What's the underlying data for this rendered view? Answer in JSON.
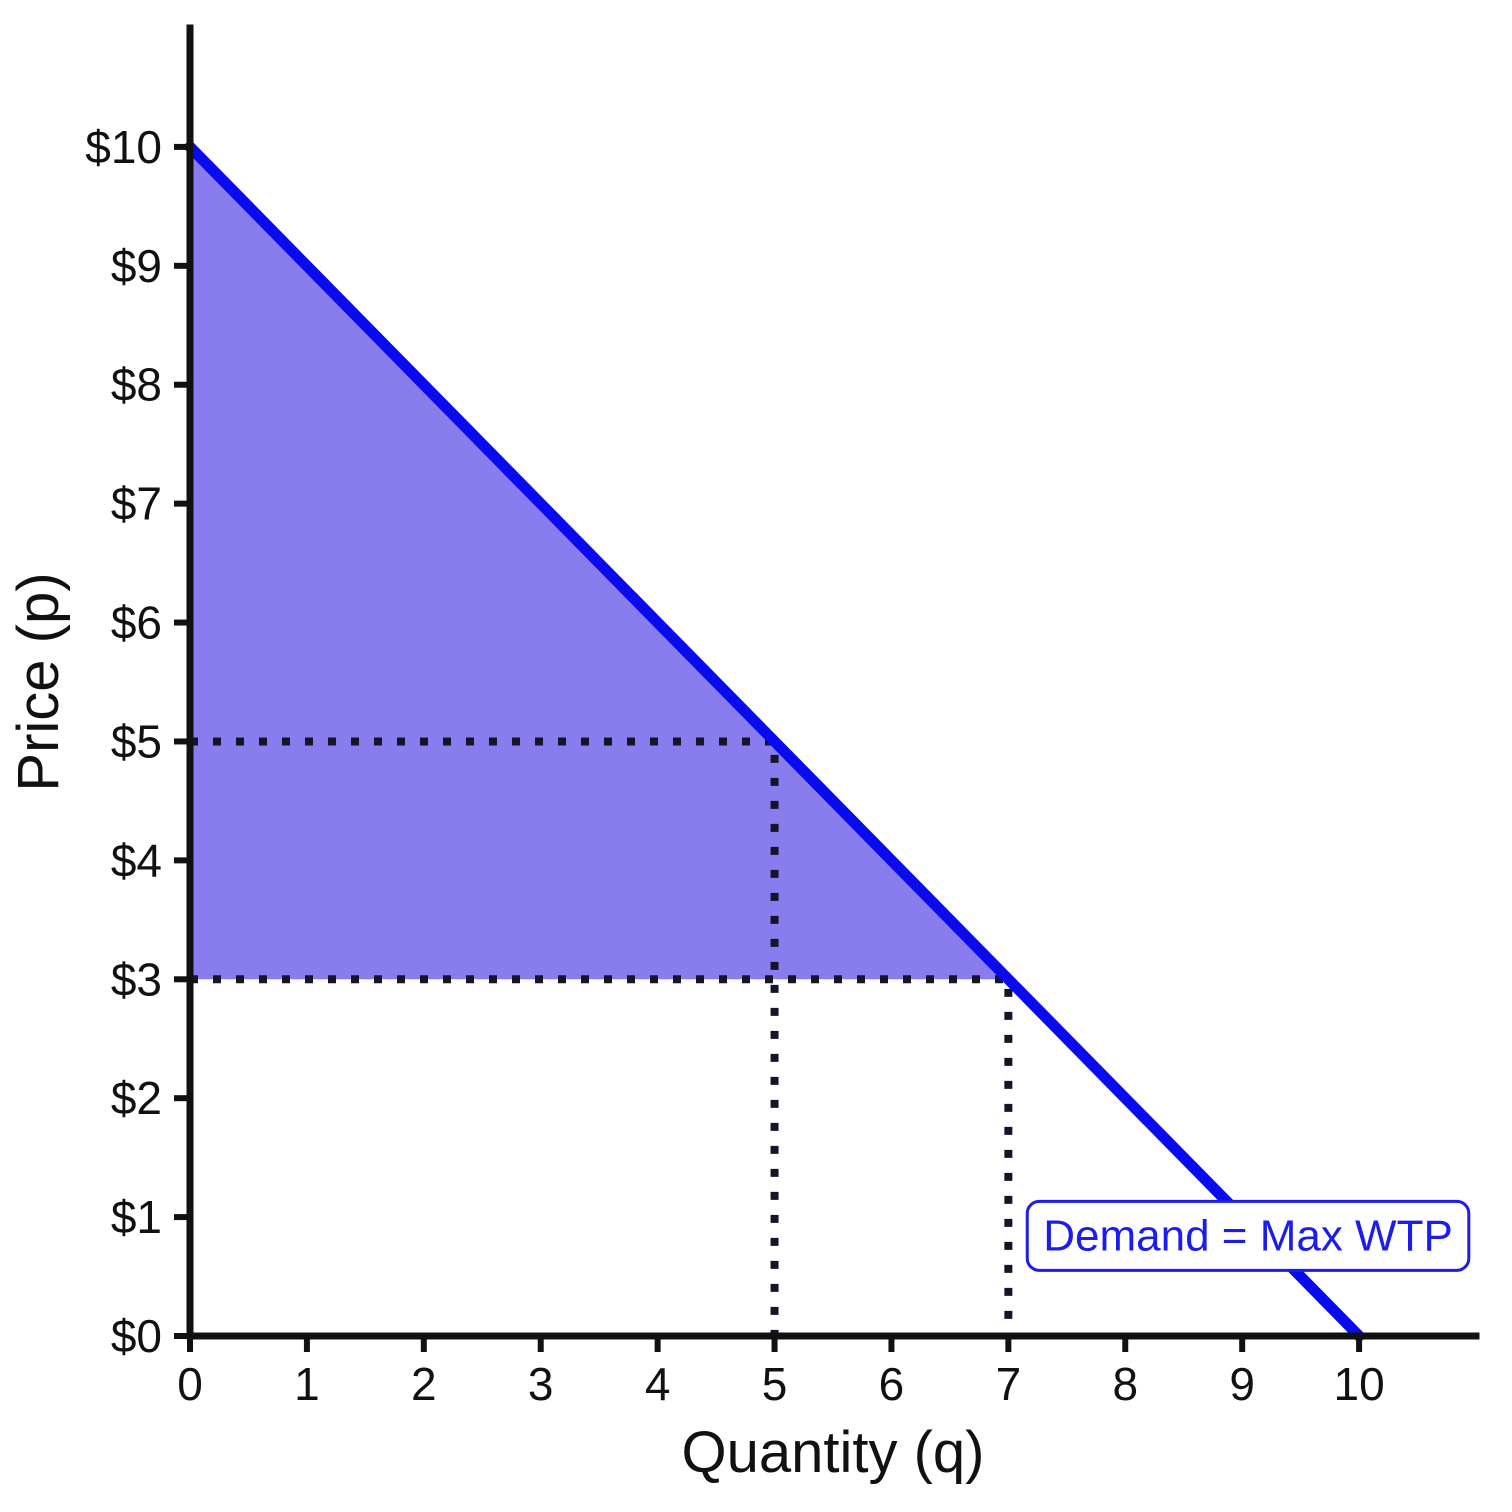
{
  "chart_data": {
    "type": "line",
    "title": "",
    "xlabel": "Quantity (q)",
    "ylabel": "Price (p)",
    "xlim": [
      0,
      11
    ],
    "ylim": [
      0,
      11
    ],
    "grid": false,
    "x_tick_values": [
      0,
      1,
      2,
      3,
      4,
      5,
      6,
      7,
      8,
      9,
      10
    ],
    "x_tick_labels": [
      "0",
      "1",
      "2",
      "3",
      "4",
      "5",
      "6",
      "7",
      "8",
      "9",
      "10"
    ],
    "y_tick_values": [
      0,
      1,
      2,
      3,
      4,
      5,
      6,
      7,
      8,
      9,
      10
    ],
    "y_tick_labels": [
      "$0",
      "$1",
      "$2",
      "$3",
      "$4",
      "$5",
      "$6",
      "$7",
      "$8",
      "$9",
      "$10"
    ],
    "series": [
      {
        "name": "Demand = Max WTP",
        "x": [
          0,
          10
        ],
        "y": [
          10,
          0
        ],
        "color": "#0a0aee",
        "width": 11
      }
    ],
    "shaded_region": {
      "name": "consumer-surplus",
      "vertices": [
        [
          0,
          10
        ],
        [
          7,
          3
        ],
        [
          0,
          3
        ]
      ],
      "fill": "#5a4ae8",
      "opacity": 0.72
    },
    "dotted_guides": [
      {
        "points": [
          [
            0,
            5
          ],
          [
            5,
            5
          ],
          [
            5,
            0
          ]
        ]
      },
      {
        "points": [
          [
            0,
            3
          ],
          [
            7,
            3
          ],
          [
            7,
            0
          ]
        ]
      }
    ],
    "guide_color": "#15152a",
    "axis_color": "#111111",
    "annotation": {
      "text": "Demand = Max WTP",
      "x": 9.05,
      "y": 0.72,
      "color": "#1c1cee"
    }
  }
}
